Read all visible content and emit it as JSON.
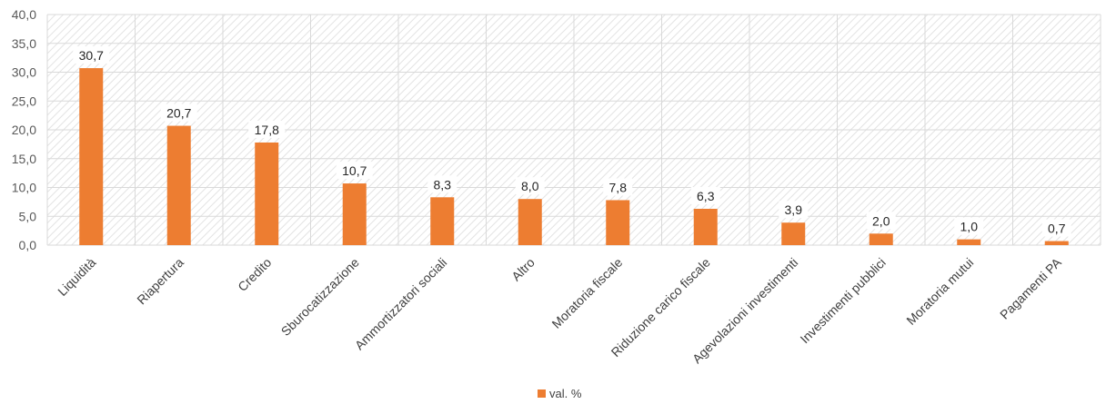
{
  "chart_data": {
    "type": "bar",
    "categories": [
      "Liquidità",
      "Riapertura",
      "Credito",
      "Sburocatizzazione",
      "Ammortizzatori sociali",
      "Altro",
      "Moratoria fiscale",
      "Riduzione carico fiscale",
      "Agevolazioni investimenti",
      "Investimenti pubblici",
      "Moratoria mutui",
      "Pagamenti PA"
    ],
    "series": [
      {
        "name": "val. %",
        "values": [
          30.7,
          20.7,
          17.8,
          10.7,
          8.3,
          8.0,
          7.8,
          6.3,
          3.9,
          2.0,
          1.0,
          0.7
        ]
      }
    ],
    "value_labels": [
      "30,7",
      "20,7",
      "17,8",
      "10,7",
      "8,3",
      "8,0",
      "7,8",
      "6,3",
      "3,9",
      "2,0",
      "1,0",
      "0,7"
    ],
    "y_ticks": [
      "0,0",
      "5,0",
      "10,0",
      "15,0",
      "20,0",
      "25,0",
      "30,0",
      "35,0",
      "40,0"
    ],
    "ylim": [
      0,
      40
    ],
    "grid": true,
    "legend_position": "bottom",
    "title": "",
    "xlabel": "",
    "ylabel": "",
    "colors": {
      "bar": "#ED7D31",
      "grid": "#D9D9D9",
      "plot_hatch": "#E0E0E0"
    }
  }
}
